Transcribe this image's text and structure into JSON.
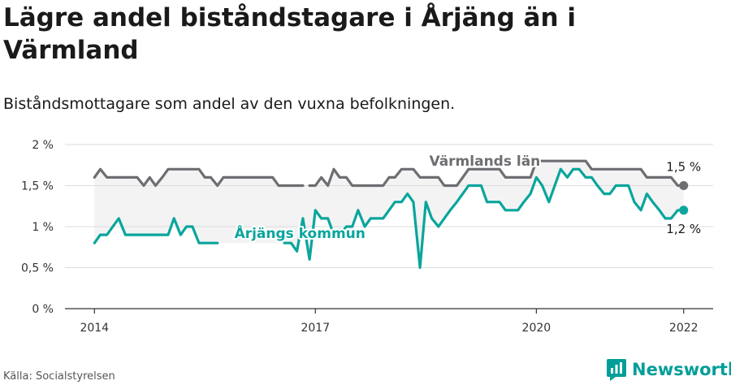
{
  "title": "Lägre andel biståndstagare i Årjäng än i Värmland",
  "subtitle": "Biståndsmottagare som andel av den vuxna befolkningen.",
  "source": "Källa: Socialstyrelsen",
  "brand": "Newsworthy",
  "colors": {
    "municipality": "#0aa59c",
    "county": "#6e6e72",
    "band": "#f3f3f4",
    "axis": "#333333"
  },
  "chart_data": {
    "type": "line",
    "ylabel": "",
    "xlabel": "",
    "ylim": [
      0,
      2
    ],
    "xlim": [
      2013.6,
      2022.4
    ],
    "yticks": [
      {
        "value": 0,
        "label": "0 %"
      },
      {
        "value": 0.5,
        "label": "0,5 %"
      },
      {
        "value": 1,
        "label": "1 %"
      },
      {
        "value": 1.5,
        "label": "1,5 %"
      },
      {
        "value": 2,
        "label": "2 %"
      }
    ],
    "xticks": [
      {
        "value": 2014,
        "label": "2014"
      },
      {
        "value": 2017,
        "label": "2017"
      },
      {
        "value": 2020,
        "label": "2020"
      },
      {
        "value": 2022,
        "label": "2022"
      }
    ],
    "grid": true,
    "series": [
      {
        "name": "Värmlands län",
        "end_label": "1,5 %",
        "points": [
          [
            2014.0,
            1.6
          ],
          [
            2014.08,
            1.7
          ],
          [
            2014.17,
            1.6
          ],
          [
            2014.25,
            1.6
          ],
          [
            2014.33,
            1.6
          ],
          [
            2014.42,
            1.6
          ],
          [
            2014.5,
            1.6
          ],
          [
            2014.58,
            1.6
          ],
          [
            2014.67,
            1.5
          ],
          [
            2014.75,
            1.6
          ],
          [
            2014.83,
            1.5
          ],
          [
            2014.92,
            1.6
          ],
          [
            2015.0,
            1.7
          ],
          [
            2015.08,
            1.7
          ],
          [
            2015.17,
            1.7
          ],
          [
            2015.25,
            1.7
          ],
          [
            2015.33,
            1.7
          ],
          [
            2015.42,
            1.7
          ],
          [
            2015.5,
            1.6
          ],
          [
            2015.58,
            1.6
          ],
          [
            2015.67,
            1.5
          ],
          [
            2015.75,
            1.6
          ],
          [
            2015.83,
            1.6
          ],
          [
            2015.92,
            1.6
          ],
          [
            2016.0,
            1.6
          ],
          [
            2016.08,
            1.6
          ],
          [
            2016.17,
            1.6
          ],
          [
            2016.25,
            1.6
          ],
          [
            2016.33,
            1.6
          ],
          [
            2016.42,
            1.6
          ],
          [
            2016.5,
            1.5
          ],
          [
            2016.58,
            1.5
          ],
          [
            2016.67,
            1.5
          ],
          [
            2016.75,
            1.5
          ],
          [
            2016.83,
            1.5
          ],
          null,
          [
            2016.92,
            1.5
          ],
          [
            2017.0,
            1.5
          ],
          [
            2017.08,
            1.6
          ],
          [
            2017.17,
            1.5
          ],
          [
            2017.25,
            1.7
          ],
          [
            2017.33,
            1.6
          ],
          [
            2017.42,
            1.6
          ],
          [
            2017.5,
            1.5
          ],
          [
            2017.58,
            1.5
          ],
          [
            2017.67,
            1.5
          ],
          [
            2017.75,
            1.5
          ],
          [
            2017.83,
            1.5
          ],
          [
            2017.92,
            1.5
          ],
          [
            2018.0,
            1.6
          ],
          [
            2018.08,
            1.6
          ],
          [
            2018.17,
            1.7
          ],
          [
            2018.25,
            1.7
          ],
          [
            2018.33,
            1.7
          ],
          [
            2018.42,
            1.6
          ],
          [
            2018.5,
            1.6
          ],
          [
            2018.58,
            1.6
          ],
          [
            2018.67,
            1.6
          ],
          [
            2018.75,
            1.5
          ],
          [
            2018.83,
            1.5
          ],
          [
            2018.92,
            1.5
          ],
          [
            2019.0,
            1.6
          ],
          [
            2019.08,
            1.7
          ],
          [
            2019.17,
            1.7
          ],
          [
            2019.25,
            1.7
          ],
          [
            2019.33,
            1.7
          ],
          [
            2019.42,
            1.7
          ],
          [
            2019.5,
            1.7
          ],
          [
            2019.58,
            1.6
          ],
          [
            2019.67,
            1.6
          ],
          [
            2019.75,
            1.6
          ],
          [
            2019.83,
            1.6
          ],
          [
            2019.92,
            1.6
          ],
          [
            2020.0,
            1.8
          ],
          [
            2020.08,
            1.8
          ],
          [
            2020.17,
            1.8
          ],
          [
            2020.25,
            1.8
          ],
          [
            2020.33,
            1.8
          ],
          [
            2020.42,
            1.8
          ],
          [
            2020.5,
            1.8
          ],
          [
            2020.58,
            1.8
          ],
          [
            2020.67,
            1.8
          ],
          [
            2020.75,
            1.7
          ],
          [
            2020.83,
            1.7
          ],
          [
            2020.92,
            1.7
          ],
          [
            2021.0,
            1.7
          ],
          [
            2021.08,
            1.7
          ],
          [
            2021.17,
            1.7
          ],
          [
            2021.25,
            1.7
          ],
          [
            2021.33,
            1.7
          ],
          [
            2021.42,
            1.7
          ],
          [
            2021.5,
            1.6
          ],
          [
            2021.58,
            1.6
          ],
          [
            2021.67,
            1.6
          ],
          [
            2021.75,
            1.6
          ],
          [
            2021.83,
            1.6
          ],
          [
            2021.92,
            1.5
          ],
          [
            2022.0,
            1.5
          ]
        ]
      },
      {
        "name": "Årjängs kommun",
        "end_label": "1,2 %",
        "points": [
          [
            2014.0,
            0.8
          ],
          [
            2014.08,
            0.9
          ],
          [
            2014.17,
            0.9
          ],
          [
            2014.25,
            1.0
          ],
          [
            2014.33,
            1.1
          ],
          [
            2014.42,
            0.9
          ],
          [
            2014.5,
            0.9
          ],
          [
            2014.58,
            0.9
          ],
          [
            2014.67,
            0.9
          ],
          [
            2014.75,
            0.9
          ],
          [
            2014.83,
            0.9
          ],
          [
            2014.92,
            0.9
          ],
          [
            2015.0,
            0.9
          ],
          [
            2015.08,
            1.1
          ],
          [
            2015.17,
            0.9
          ],
          [
            2015.25,
            1.0
          ],
          [
            2015.33,
            1.0
          ],
          [
            2015.42,
            0.8
          ],
          [
            2015.5,
            0.8
          ],
          [
            2015.58,
            0.8
          ],
          [
            2015.67,
            0.8
          ],
          null,
          [
            2016.58,
            0.8
          ],
          [
            2016.67,
            0.8
          ],
          [
            2016.75,
            0.7
          ],
          [
            2016.83,
            1.1
          ],
          [
            2016.92,
            0.6
          ],
          [
            2017.0,
            1.2
          ],
          [
            2017.08,
            1.1
          ],
          [
            2017.17,
            1.1
          ],
          [
            2017.25,
            0.9
          ],
          [
            2017.33,
            0.9
          ],
          [
            2017.42,
            1.0
          ],
          [
            2017.5,
            1.0
          ],
          [
            2017.58,
            1.2
          ],
          [
            2017.67,
            1.0
          ],
          [
            2017.75,
            1.1
          ],
          [
            2017.83,
            1.1
          ],
          [
            2017.92,
            1.1
          ],
          [
            2018.0,
            1.2
          ],
          [
            2018.08,
            1.3
          ],
          [
            2018.17,
            1.3
          ],
          [
            2018.25,
            1.4
          ],
          [
            2018.33,
            1.3
          ],
          [
            2018.42,
            0.5
          ],
          [
            2018.5,
            1.3
          ],
          [
            2018.58,
            1.1
          ],
          [
            2018.67,
            1.0
          ],
          [
            2018.75,
            1.1
          ],
          [
            2018.83,
            1.2
          ],
          [
            2018.92,
            1.3
          ],
          [
            2019.0,
            1.4
          ],
          [
            2019.08,
            1.5
          ],
          [
            2019.17,
            1.5
          ],
          [
            2019.25,
            1.5
          ],
          [
            2019.33,
            1.3
          ],
          [
            2019.42,
            1.3
          ],
          [
            2019.5,
            1.3
          ],
          [
            2019.58,
            1.2
          ],
          [
            2019.67,
            1.2
          ],
          [
            2019.75,
            1.2
          ],
          [
            2019.83,
            1.3
          ],
          [
            2019.92,
            1.4
          ],
          [
            2020.0,
            1.6
          ],
          [
            2020.08,
            1.5
          ],
          [
            2020.17,
            1.3
          ],
          [
            2020.25,
            1.5
          ],
          [
            2020.33,
            1.7
          ],
          [
            2020.42,
            1.6
          ],
          [
            2020.5,
            1.7
          ],
          [
            2020.58,
            1.7
          ],
          [
            2020.67,
            1.6
          ],
          [
            2020.75,
            1.6
          ],
          [
            2020.83,
            1.5
          ],
          [
            2020.92,
            1.4
          ],
          [
            2021.0,
            1.4
          ],
          [
            2021.08,
            1.5
          ],
          [
            2021.17,
            1.5
          ],
          [
            2021.25,
            1.5
          ],
          [
            2021.33,
            1.3
          ],
          [
            2021.42,
            1.2
          ],
          [
            2021.5,
            1.4
          ],
          [
            2021.58,
            1.3
          ],
          [
            2021.67,
            1.2
          ],
          [
            2021.75,
            1.1
          ],
          [
            2021.83,
            1.1
          ],
          [
            2021.92,
            1.2
          ],
          [
            2022.0,
            1.2
          ]
        ]
      }
    ]
  }
}
